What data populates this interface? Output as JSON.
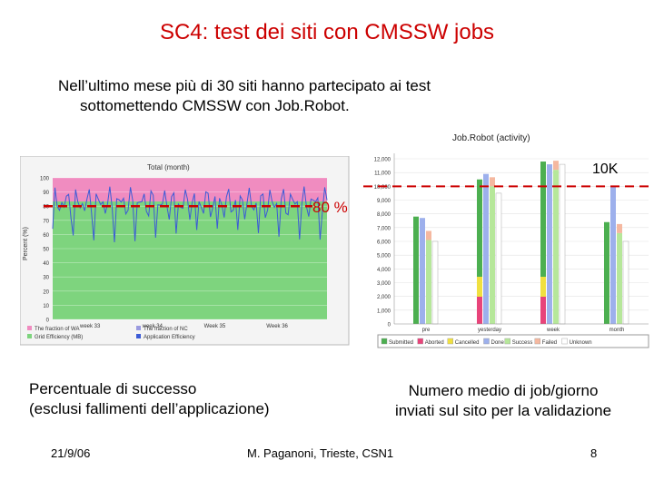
{
  "slide": {
    "title": "SC4: test dei siti con CMSSW jobs",
    "intro_line1": "Nell’ultimo mese più di 30 siti hanno partecipato ai test",
    "intro_line2": "sottomettendo CMSSW con Job.Robot.",
    "caption_left_1": "Percentuale di successo",
    "caption_left_2": "(esclusi fallimenti dell’applicazione)",
    "caption_right_1": "Numero medio di job/giorno",
    "caption_right_2": "inviati sul sito per la validazione",
    "annotation_left": "80 %",
    "annotation_right": "10K",
    "footer_date": "21/9/06",
    "footer_author": "M. Paganoni, Trieste, CSN1",
    "footer_page": "8"
  },
  "colors": {
    "title": "#cc0000",
    "dashed_line": "#cc0000",
    "green_fill": "#7ed47e",
    "pink_fill": "#f08cc0",
    "blue_line": "#3b5bd6"
  },
  "chart_data": [
    {
      "type": "area",
      "title": "Total (month)",
      "ylabel": "Percent (%)",
      "ylim": [
        0,
        100
      ],
      "y_ticks": [
        0,
        10,
        20,
        30,
        40,
        50,
        60,
        70,
        80,
        90,
        100
      ],
      "x_ticks": [
        "week 33",
        "week 34",
        "Week 35",
        "Week 36"
      ],
      "grid": true,
      "reference_line": 80,
      "legend": [
        {
          "label": "The fraction of WA",
          "color": "#f08cc0"
        },
        {
          "label": "The fraction of NC",
          "color": "#9a9adf"
        },
        {
          "label": "Grid Efficiency (MB)",
          "color": "#7ed47e"
        },
        {
          "label": "Application Efficiency",
          "color": "#3b5bd6"
        }
      ]
    },
    {
      "type": "bar",
      "title": "Job.Robot (activity)",
      "ylim": [
        0,
        12000
      ],
      "y_ticks": [
        "0",
        "1,000",
        "2,000",
        "3,000",
        "4,000",
        "5,000",
        "6,000",
        "7,000",
        "8,000",
        "9,000",
        "10,000",
        "11,000",
        "12,000"
      ],
      "categories": [
        "pre",
        "yesterday",
        "week",
        "month"
      ],
      "reference_line": 10000,
      "series": [
        {
          "name": "Submitted",
          "values": [
            7800,
            10500,
            11800,
            7400
          ]
        },
        {
          "name": "Done",
          "values": [
            7700,
            10900,
            11600,
            10000
          ]
        },
        {
          "name": "Success",
          "values": [
            6100,
            10000,
            11200,
            6600
          ]
        },
        {
          "name": "Unknown",
          "values": [
            6000,
            9500,
            11600,
            6000
          ]
        }
      ],
      "legend": [
        {
          "label": "Submitted",
          "color": "#4caf50"
        },
        {
          "label": "Aborted",
          "color": "#e8447a"
        },
        {
          "label": "Cancelled",
          "color": "#f0e040"
        },
        {
          "label": "Done",
          "color": "#9db0ec"
        },
        {
          "label": "Success",
          "color": "#b6e79a"
        },
        {
          "label": "Failed",
          "color": "#f5b8a0"
        },
        {
          "label": "Unknown",
          "color": "#ffffff"
        }
      ]
    }
  ]
}
